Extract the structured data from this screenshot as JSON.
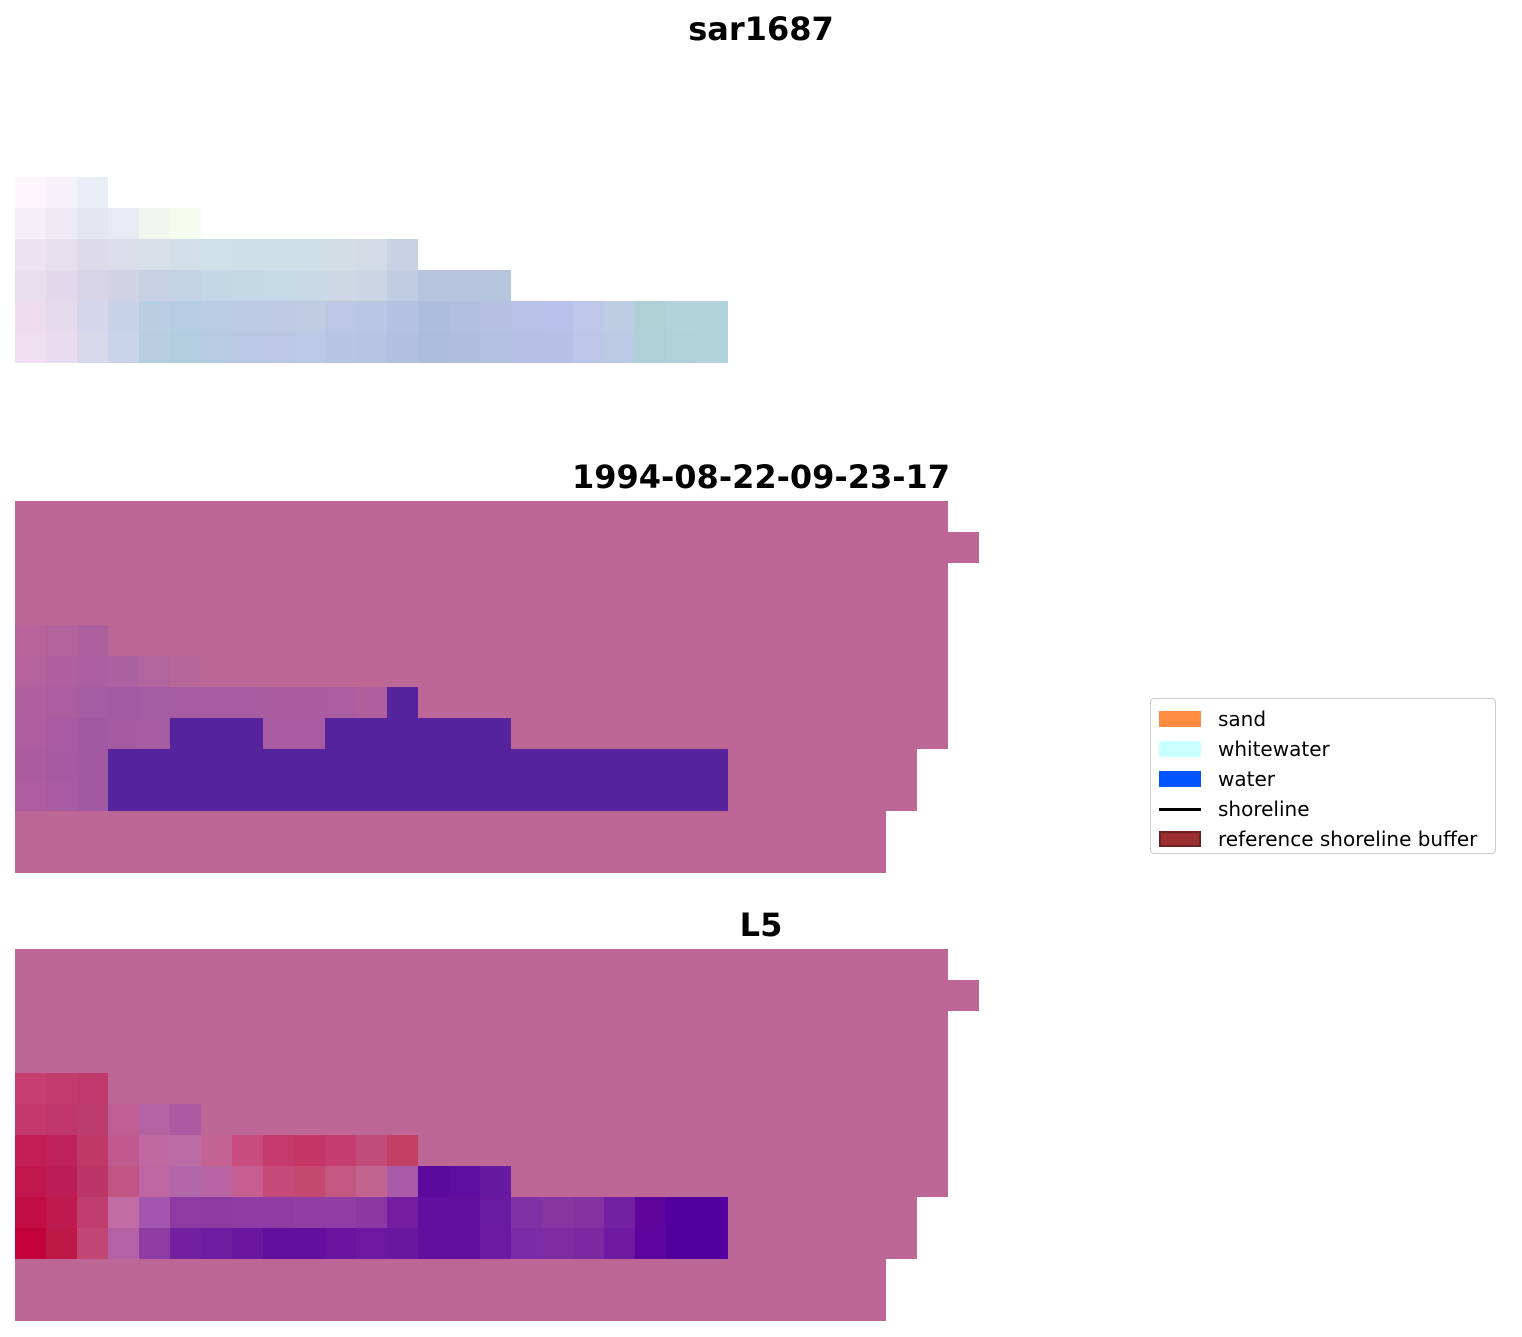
{
  "panels": [
    {
      "id": "sar",
      "title": "sar1687"
    },
    {
      "id": "date",
      "title": "1994-08-22-09-23-17"
    },
    {
      "id": "sat",
      "title": "L5"
    }
  ],
  "legend": {
    "items": [
      {
        "label": "sand",
        "color": "#ff8c3f",
        "kind": "patch"
      },
      {
        "label": "whitewater",
        "color": "#c8ffff",
        "kind": "patch"
      },
      {
        "label": "water",
        "color": "#0055ff",
        "kind": "patch"
      },
      {
        "label": "shoreline",
        "color": "#000000",
        "kind": "line"
      },
      {
        "label": "reference shoreline buffer",
        "color": "#9b2f2f",
        "kind": "patch"
      }
    ]
  },
  "colors": {
    "buffer_overlay": "#bc6796",
    "water_overlay": "#55239b"
  }
}
